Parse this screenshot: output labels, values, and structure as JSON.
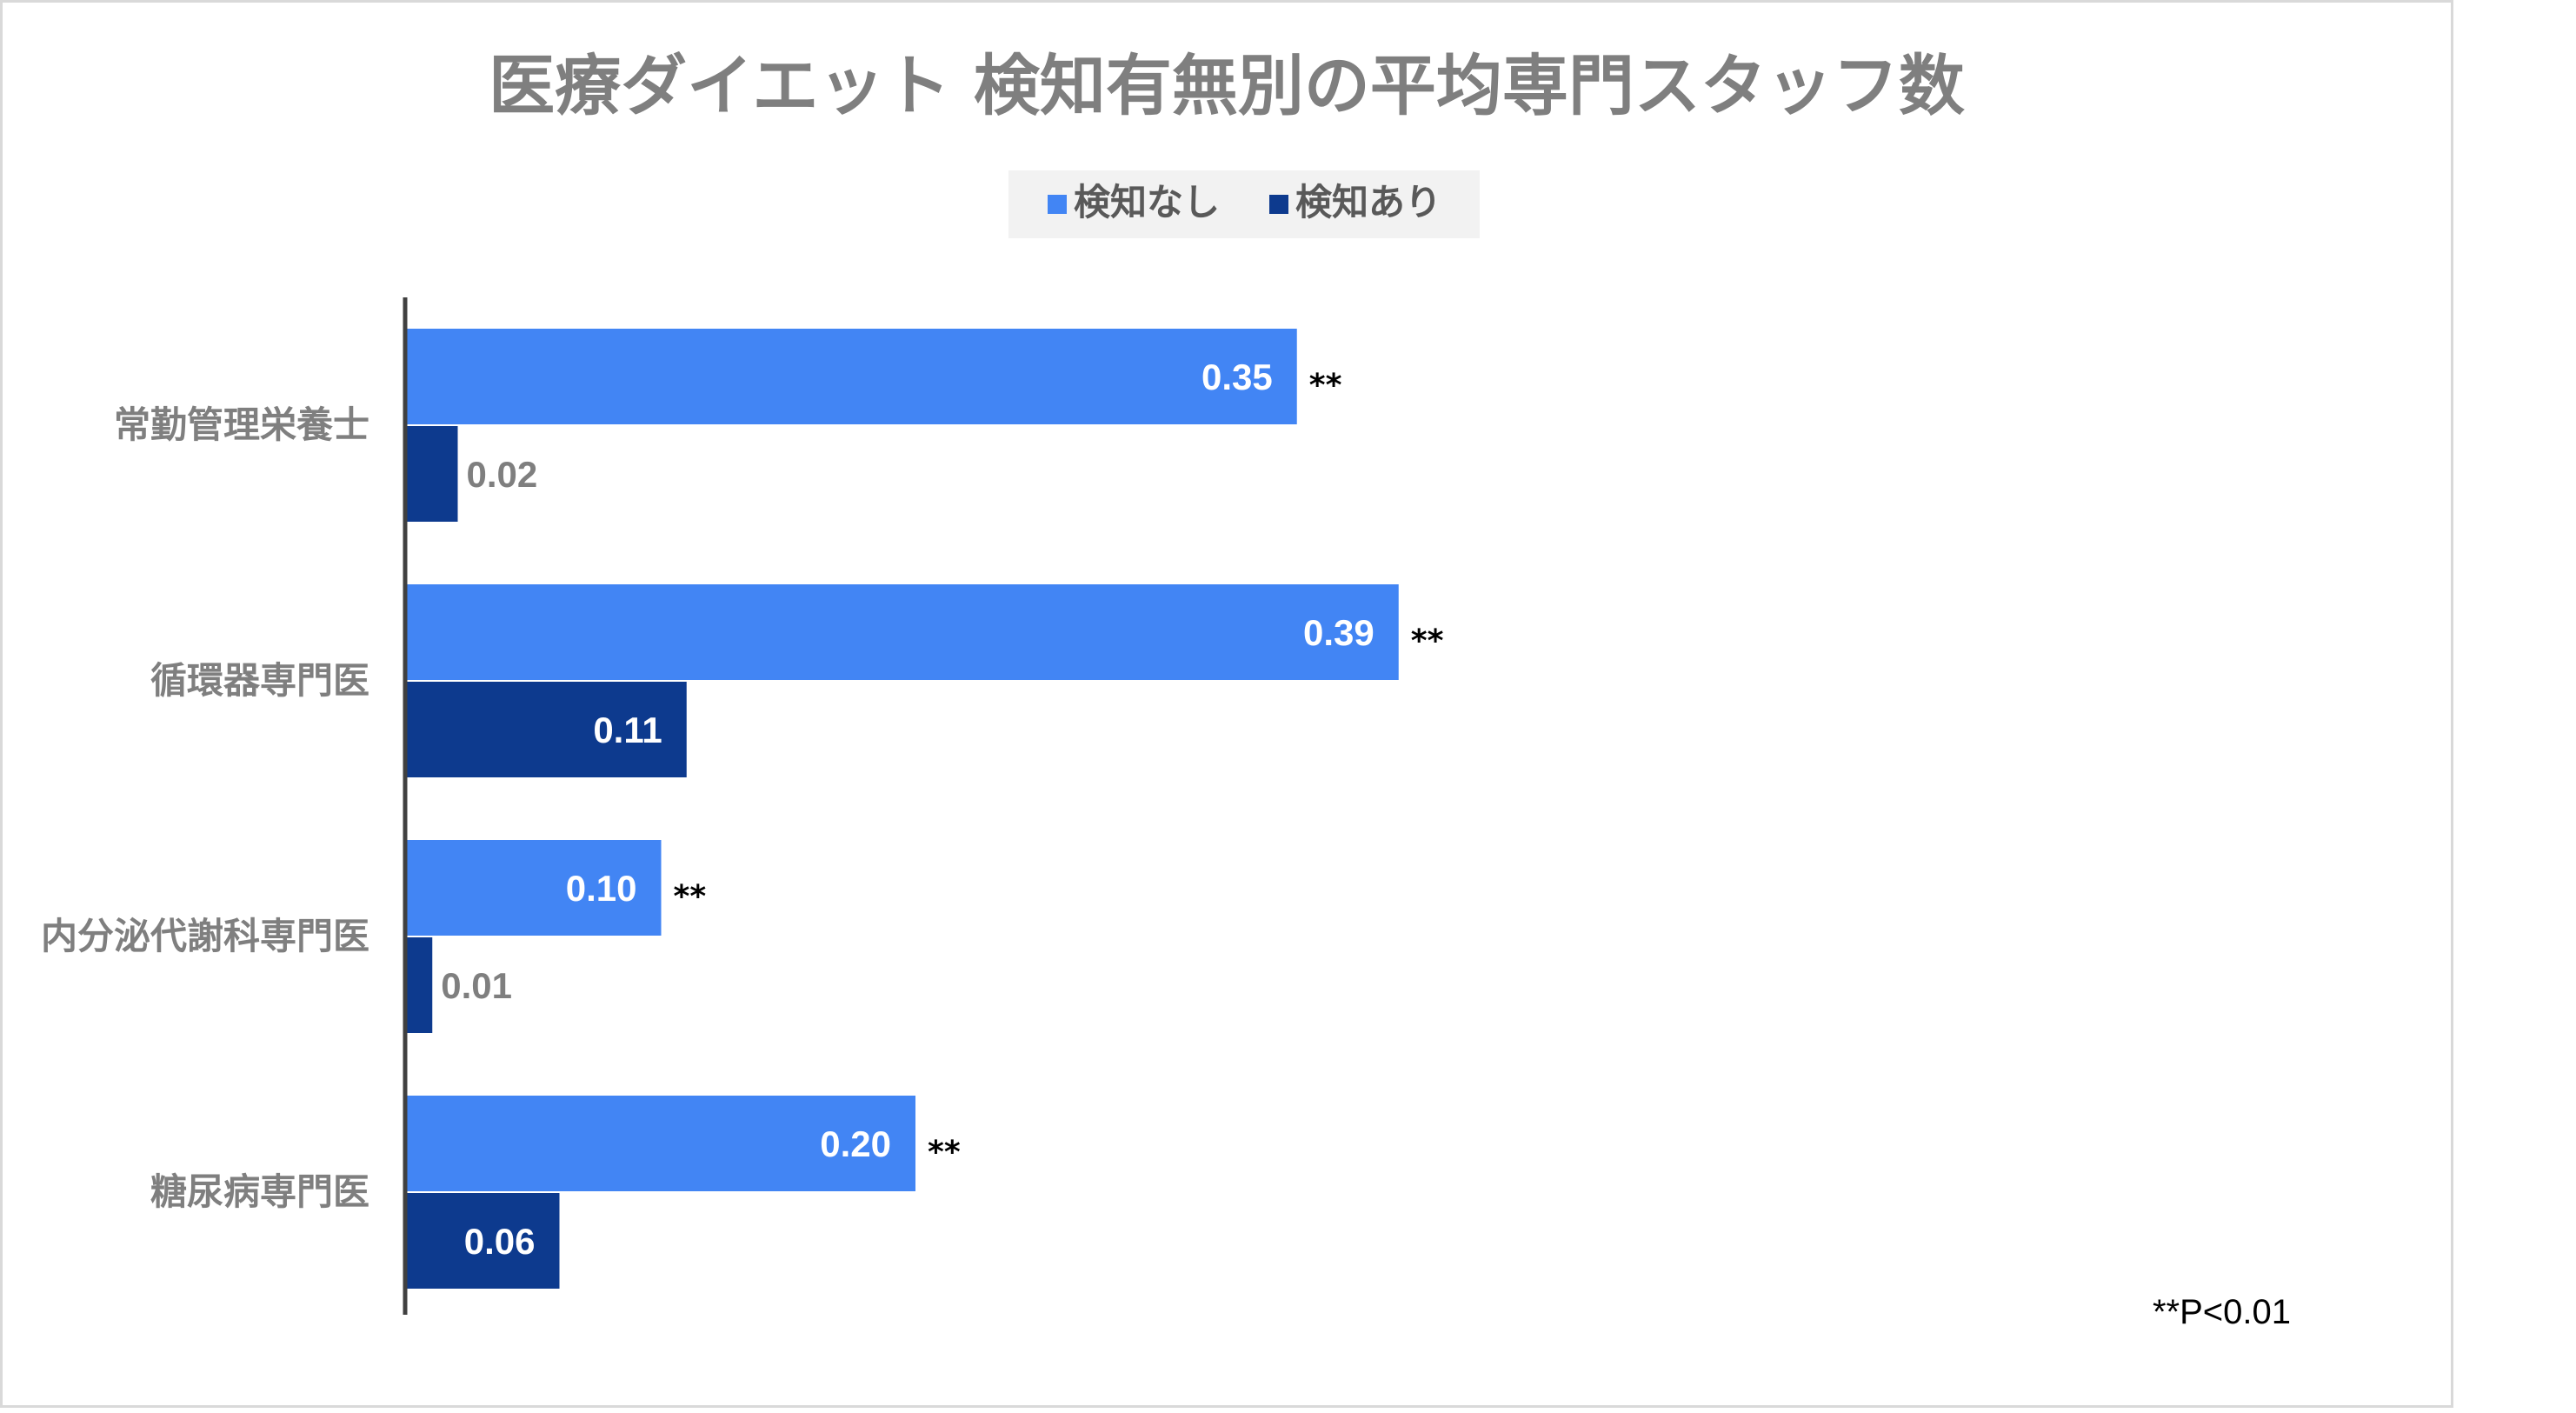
{
  "chart_data": {
    "type": "bar",
    "orientation": "horizontal",
    "title": "医療ダイエット 検知有無別の平均専門スタッフ数",
    "categories": [
      "常勤管理栄養士",
      "循環器専門医",
      "内分泌代謝科専門医",
      "糖尿病専門医"
    ],
    "series": [
      {
        "name": "検知なし",
        "color": "#4285f4",
        "values": [
          0.35,
          0.39,
          0.1,
          0.2
        ],
        "labels": [
          "0.35",
          "0.39",
          "0.10",
          "0.20"
        ]
      },
      {
        "name": "検知あり",
        "color": "#0d3a8e",
        "values": [
          0.02,
          0.11,
          0.01,
          0.06
        ],
        "labels": [
          "0.02",
          "0.11",
          "0.01",
          "0.06"
        ]
      }
    ],
    "significance": [
      "**",
      "**",
      "**",
      "**"
    ],
    "xlim": [
      0,
      0.4
    ],
    "legend": "top",
    "grid": false,
    "footnote": "**P<0.01"
  }
}
